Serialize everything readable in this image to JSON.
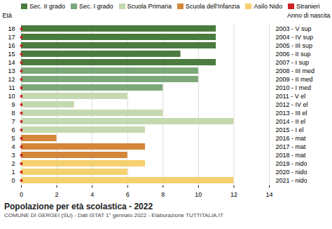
{
  "chart_data": {
    "type": "bar",
    "orientation": "horizontal",
    "title": "Popolazione per età scolastica - 2022",
    "subtitle": "COMUNE DI GERGEI (SU) - Dati ISTAT 1° gennaio 2022 - Elaborazione TUTTITALIA.IT",
    "y_label": "Età",
    "y2_label": "Anno di nascita",
    "categories": [
      "18",
      "17",
      "16",
      "15",
      "14",
      "13",
      "12",
      "11",
      "10",
      "9",
      "8",
      "7",
      "6",
      "5",
      "4",
      "3",
      "2",
      "1",
      "0"
    ],
    "y2_categories": [
      "2003 - V sup",
      "2004 - IV sup",
      "2005 - III sup",
      "2006 - II sup",
      "2007 - I sup",
      "2008 - III med",
      "2009 - II med",
      "2010 - I med",
      "2011 - V el",
      "2012 - IV el",
      "2013 - III el",
      "2014 - II el",
      "2015 - I el",
      "2016 - mat",
      "2017 - mat",
      "2018 - mat",
      "2019 - nido",
      "2020 - nido",
      "2021 - nido"
    ],
    "values": [
      11,
      11,
      11,
      9,
      11,
      10,
      10,
      8,
      6,
      3,
      8,
      12,
      7,
      2,
      7,
      6,
      7,
      6,
      12
    ],
    "colors": [
      "#4a7c3f",
      "#4a7c3f",
      "#4a7c3f",
      "#4a7c3f",
      "#4a7c3f",
      "#7da87a",
      "#7da87a",
      "#7da87a",
      "#c5d9b0",
      "#c5d9b0",
      "#c5d9b0",
      "#c5d9b0",
      "#c5d9b0",
      "#d4863a",
      "#d4863a",
      "#d4863a",
      "#f5d06e",
      "#f5d06e",
      "#f5d06e"
    ],
    "legend": "top",
    "legend_entries": [
      {
        "name": "Sec. II grado",
        "color": "#4a7c3f"
      },
      {
        "name": "Sec. I grado",
        "color": "#7da87a"
      },
      {
        "name": "Scuola Primaria",
        "color": "#c5d9b0"
      },
      {
        "name": "Scuola dell'Infanzia",
        "color": "#d4863a"
      },
      {
        "name": "Asilo Nido",
        "color": "#f5d06e"
      }
    ],
    "marker_series": {
      "name": "Stranieri",
      "color": "#cc2222",
      "marker": "square"
    },
    "xlim": [
      0,
      14
    ],
    "xticks": [
      0,
      2,
      4,
      6,
      8,
      10,
      12,
      14
    ],
    "grid": true
  }
}
